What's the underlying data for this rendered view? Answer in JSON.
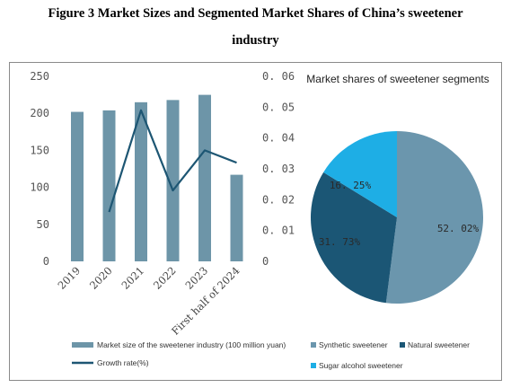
{
  "caption": {
    "line1": "Figure 3 Market Sizes and Segmented Market Shares of China’s sweetener",
    "line2": "industry"
  },
  "colors": {
    "bar": "#6d95a8",
    "line": "#1d5673",
    "synthetic": "#6b96ad",
    "natural": "#1b5675",
    "sugar_alcohol": "#1eaee5"
  },
  "chart_data": [
    {
      "type": "bar+line",
      "categories": [
        "2019",
        "2020",
        "2021",
        "2022",
        "2023",
        "First half of 2024"
      ],
      "series": [
        {
          "name": "Market size of the sweetener industry (100 million yuan)",
          "type": "bar",
          "axis": "left",
          "values": [
            202,
            204,
            215,
            218,
            225,
            117
          ]
        },
        {
          "name": "Growth rate(%)",
          "type": "line",
          "axis": "right",
          "values": [
            null,
            0.016,
            0.049,
            0.023,
            0.036,
            0.032
          ]
        }
      ],
      "y_left": {
        "min": 0,
        "max": 250,
        "ticks": [
          "0",
          "50",
          "100",
          "150",
          "200",
          "250"
        ]
      },
      "y_right": {
        "min": 0,
        "max": 0.06,
        "ticks": [
          "0",
          "0. 01",
          "0. 02",
          "0. 03",
          "0. 04",
          "0. 05",
          "0. 06"
        ]
      },
      "grid": false,
      "legend_position": "bottom"
    },
    {
      "type": "pie",
      "title": "Market shares of sweetener segments",
      "slices": [
        {
          "name": "Synthetic sweetener",
          "value": 52.02,
          "label": "52. 02%"
        },
        {
          "name": "Natural sweetener",
          "value": 31.73,
          "label": "31. 73%"
        },
        {
          "name": "Sugar alcohol sweetener",
          "value": 16.25,
          "label": "16. 25%"
        }
      ],
      "legend_position": "bottom"
    }
  ]
}
